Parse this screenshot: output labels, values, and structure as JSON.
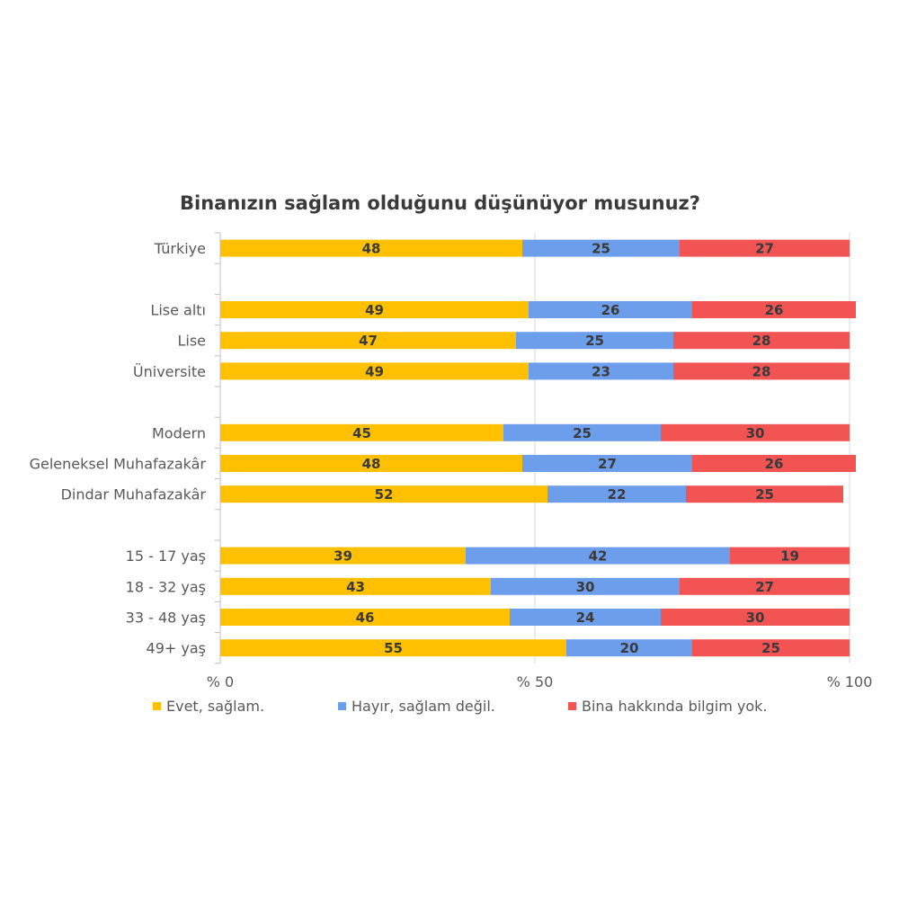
{
  "chart_data": {
    "type": "bar",
    "orientation": "horizontal",
    "stacked": true,
    "title": "Binanızın sağlam olduğunu düşünüyor musunuz?",
    "xlabel": "",
    "ylabel": "",
    "xlim": [
      0,
      100
    ],
    "x_ticks": [
      "% 0",
      "% 50",
      "% 100"
    ],
    "grid": true,
    "legend_position": "bottom",
    "categories": [
      "Türkiye",
      "",
      "Lise altı",
      "Lise",
      "Üniversite",
      "",
      "Modern",
      "Geleneksel Muhafazakâr",
      "Dindar Muhafazakâr",
      "",
      "15 - 17 yaş",
      "18 - 32 yaş",
      "33 - 48 yaş",
      "49+ yaş"
    ],
    "series": [
      {
        "name": "Evet, sağlam.",
        "color": "#FFC000",
        "values": [
          48,
          null,
          49,
          47,
          49,
          null,
          45,
          48,
          52,
          null,
          39,
          43,
          46,
          55
        ]
      },
      {
        "name": "Hayır, sağlam değil.",
        "color": "#6D9EEB",
        "values": [
          25,
          null,
          26,
          25,
          23,
          null,
          25,
          27,
          22,
          null,
          42,
          30,
          24,
          20
        ]
      },
      {
        "name": "Bina hakkında bilgim yok.",
        "color": "#F25454",
        "values": [
          27,
          null,
          26,
          28,
          28,
          null,
          30,
          26,
          25,
          null,
          19,
          27,
          30,
          25
        ]
      }
    ]
  }
}
